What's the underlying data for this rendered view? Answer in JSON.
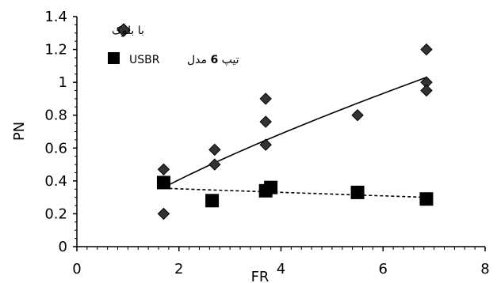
{
  "chart_data": {
    "type": "scatter",
    "title": "",
    "xlabel": "FR",
    "ylabel": "PN",
    "xlim": [
      0,
      8
    ],
    "ylim": [
      0,
      1.4
    ],
    "x_ticks": [
      0,
      2,
      4,
      6,
      8
    ],
    "y_ticks": [
      0,
      0.2,
      0.4,
      0.6,
      0.8,
      1,
      1.2,
      1.4
    ],
    "x_tick_labels": [
      "0",
      "2",
      "4",
      "6",
      "8"
    ],
    "y_tick_labels": [
      "0",
      "0.2",
      "0.4",
      "0.6",
      "0.8",
      "1",
      "1.2",
      "1.4"
    ],
    "grid": false,
    "legend_position": "top-left",
    "series": [
      {
        "name": "با بلوک",
        "marker": "diamond",
        "color": "#333333",
        "x": [
          1.7,
          1.7,
          2.7,
          2.7,
          3.7,
          3.7,
          3.7,
          5.5,
          6.85,
          6.85,
          6.85
        ],
        "y": [
          0.47,
          0.2,
          0.59,
          0.5,
          0.9,
          0.76,
          0.62,
          0.8,
          1.2,
          1.0,
          0.95
        ],
        "trendline": {
          "style": "solid",
          "type": "power",
          "x_range": [
            1.7,
            6.85
          ],
          "y_at_start": 0.36,
          "y_at_end": 1.03
        }
      },
      {
        "name_parts": [
          "تیپ ",
          "6",
          " مدل  ",
          "USBR"
        ],
        "marker": "square",
        "color": "#000000",
        "x": [
          1.7,
          2.65,
          3.7,
          3.8,
          5.5,
          6.85
        ],
        "y": [
          0.39,
          0.28,
          0.34,
          0.36,
          0.33,
          0.29
        ],
        "trendline": {
          "style": "dashed",
          "type": "linear",
          "x_range": [
            1.7,
            6.85
          ],
          "y_at_start": 0.355,
          "y_at_end": 0.3
        }
      }
    ]
  }
}
